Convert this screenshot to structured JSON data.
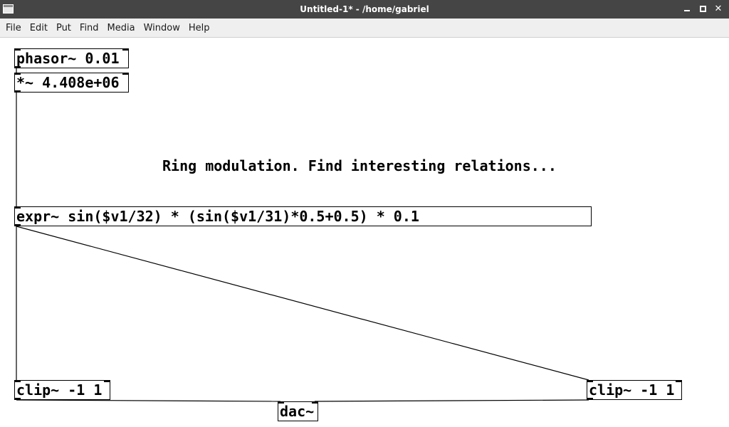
{
  "window": {
    "title": "Untitled-1* - /home/gabriel",
    "app_icon": "window-icon",
    "controls": [
      "minimize-icon",
      "maximize-icon",
      "close-icon"
    ],
    "close_glyph": "✕"
  },
  "menubar": {
    "items": [
      "File",
      "Edit",
      "Put",
      "Find",
      "Media",
      "Window",
      "Help"
    ]
  },
  "patch": {
    "objects": {
      "phasor": "phasor~ 0.01",
      "mult": "*~ 4.408e+06",
      "expr": "expr~ sin($v1/32) * (sin($v1/31)*0.5+0.5) * 0.1",
      "clip_left": "clip~ -1 1",
      "clip_right": "clip~ -1 1",
      "dac": "dac~"
    },
    "comment": "Ring modulation. Find interesting relations..."
  },
  "colors": {
    "titlebar_bg": "#454545",
    "menubar_bg": "#efefef",
    "canvas_bg": "#ffffff",
    "ink": "#000000"
  }
}
